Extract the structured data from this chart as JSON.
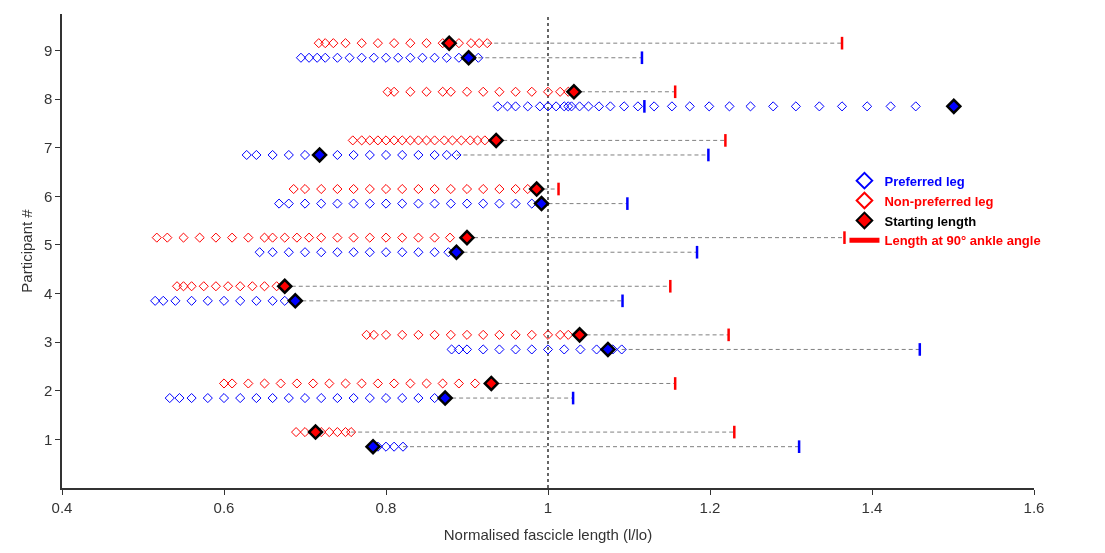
{
  "chart_data": {
    "type": "scatter",
    "xlabel": "Normalised fascicle length (l/lo)",
    "ylabel": "Participant #",
    "xlim": [
      0.4,
      1.6
    ],
    "xticks": [
      0.4,
      0.6,
      0.8,
      1,
      1.2,
      1.4,
      1.6
    ],
    "ylim": [
      0,
      9.75
    ],
    "yticks": [
      1,
      2,
      3,
      4,
      5,
      6,
      7,
      8,
      9
    ],
    "grid": false,
    "legend": "right",
    "ref_lines": [
      {
        "axis": "x",
        "value": 1,
        "color": "#000000",
        "line_style": "dotted"
      }
    ],
    "series": [
      {
        "type": "line",
        "color": "#808080",
        "line_style": "dashed",
        "marker": "none",
        "x": [
          0.925,
          1.363,
          null,
          1.032,
          1.157,
          null,
          0.936,
          1.219,
          null,
          0.986,
          1.013,
          null,
          0.9,
          1.366,
          null,
          0.675,
          1.151,
          null,
          1.039,
          1.223,
          null,
          0.93,
          1.157,
          null,
          0.757,
          1.23,
          null,
          0.914,
          1.116,
          null,
          0.887,
          1.198,
          null,
          0.992,
          1.098,
          null,
          0.887,
          1.184,
          null,
          0.688,
          1.092,
          null,
          1.091,
          1.459,
          null,
          0.873,
          1.031,
          null,
          0.821,
          1.31
        ],
        "values": [
          9.15,
          9.15,
          null,
          8.15,
          8.15,
          null,
          7.15,
          7.15,
          null,
          6.15,
          6.15,
          null,
          5.15,
          5.15,
          null,
          4.15,
          4.15,
          null,
          3.15,
          3.15,
          null,
          2.15,
          2.15,
          null,
          1.15,
          1.15,
          null,
          8.85,
          8.85,
          null,
          6.85,
          6.85,
          null,
          5.85,
          5.85,
          null,
          4.85,
          4.85,
          null,
          3.85,
          3.85,
          null,
          2.85,
          2.85,
          null,
          1.85,
          1.85,
          null,
          0.85,
          0.85
        ]
      },
      {
        "name": "Preferred leg",
        "color": "#0000ff",
        "marker": "diamond",
        "x": [
          0.695,
          0.705,
          0.715,
          0.725,
          0.74,
          0.755,
          0.77,
          0.785,
          0.8,
          0.815,
          0.83,
          0.845,
          0.86,
          0.875,
          0.89,
          0.914,
          0.938,
          0.95,
          0.96,
          0.975,
          0.99,
          1.0,
          1.01,
          1.02,
          1.025,
          1.029,
          1.039,
          1.05,
          1.063,
          1.077,
          1.094,
          1.111,
          1.131,
          1.153,
          1.175,
          1.199,
          1.224,
          1.25,
          1.278,
          1.306,
          1.335,
          1.363,
          1.394,
          1.423,
          1.454,
          0.628,
          0.64,
          0.66,
          0.68,
          0.7,
          0.74,
          0.76,
          0.78,
          0.8,
          0.82,
          0.84,
          0.86,
          0.875,
          0.887,
          0.668,
          0.68,
          0.7,
          0.72,
          0.74,
          0.76,
          0.78,
          0.8,
          0.82,
          0.84,
          0.86,
          0.88,
          0.9,
          0.92,
          0.94,
          0.96,
          0.98,
          0.644,
          0.66,
          0.68,
          0.7,
          0.72,
          0.74,
          0.76,
          0.78,
          0.8,
          0.82,
          0.84,
          0.86,
          0.877,
          0.515,
          0.525,
          0.54,
          0.56,
          0.58,
          0.6,
          0.62,
          0.64,
          0.66,
          0.675,
          0.881,
          0.89,
          0.9,
          0.92,
          0.94,
          0.96,
          0.98,
          1.0,
          1.02,
          1.04,
          1.06,
          1.08,
          1.091,
          0.533,
          0.545,
          0.56,
          0.58,
          0.6,
          0.62,
          0.64,
          0.66,
          0.68,
          0.7,
          0.72,
          0.74,
          0.76,
          0.78,
          0.8,
          0.82,
          0.84,
          0.86,
          0.79,
          0.8,
          0.81,
          0.821
        ],
        "values": [
          8.85,
          8.85,
          8.85,
          8.85,
          8.85,
          8.85,
          8.85,
          8.85,
          8.85,
          8.85,
          8.85,
          8.85,
          8.85,
          8.85,
          8.85,
          8.85,
          7.85,
          7.85,
          7.85,
          7.85,
          7.85,
          7.85,
          7.85,
          7.85,
          7.85,
          7.85,
          7.85,
          7.85,
          7.85,
          7.85,
          7.85,
          7.85,
          7.85,
          7.85,
          7.85,
          7.85,
          7.85,
          7.85,
          7.85,
          7.85,
          7.85,
          7.85,
          7.85,
          7.85,
          7.85,
          6.85,
          6.85,
          6.85,
          6.85,
          6.85,
          6.85,
          6.85,
          6.85,
          6.85,
          6.85,
          6.85,
          6.85,
          6.85,
          6.85,
          5.85,
          5.85,
          5.85,
          5.85,
          5.85,
          5.85,
          5.85,
          5.85,
          5.85,
          5.85,
          5.85,
          5.85,
          5.85,
          5.85,
          5.85,
          5.85,
          5.85,
          4.85,
          4.85,
          4.85,
          4.85,
          4.85,
          4.85,
          4.85,
          4.85,
          4.85,
          4.85,
          4.85,
          4.85,
          4.85,
          3.85,
          3.85,
          3.85,
          3.85,
          3.85,
          3.85,
          3.85,
          3.85,
          3.85,
          3.85,
          2.85,
          2.85,
          2.85,
          2.85,
          2.85,
          2.85,
          2.85,
          2.85,
          2.85,
          2.85,
          2.85,
          2.85,
          2.85,
          1.85,
          1.85,
          1.85,
          1.85,
          1.85,
          1.85,
          1.85,
          1.85,
          1.85,
          1.85,
          1.85,
          1.85,
          1.85,
          1.85,
          1.85,
          1.85,
          1.85,
          1.85,
          0.85,
          0.85,
          0.85,
          0.85
        ]
      },
      {
        "name": "Non-preferred leg",
        "color": "#ff0000",
        "marker": "diamond",
        "x": [
          0.717,
          0.725,
          0.735,
          0.75,
          0.77,
          0.79,
          0.81,
          0.83,
          0.85,
          0.87,
          0.89,
          0.905,
          0.915,
          0.925,
          0.802,
          0.81,
          0.83,
          0.85,
          0.87,
          0.88,
          0.9,
          0.92,
          0.94,
          0.96,
          0.98,
          1.0,
          1.015,
          1.025,
          0.759,
          0.77,
          0.78,
          0.79,
          0.8,
          0.81,
          0.82,
          0.83,
          0.84,
          0.85,
          0.86,
          0.872,
          0.882,
          0.893,
          0.904,
          0.913,
          0.922,
          0.686,
          0.7,
          0.72,
          0.74,
          0.76,
          0.78,
          0.8,
          0.82,
          0.84,
          0.86,
          0.88,
          0.9,
          0.92,
          0.94,
          0.96,
          0.975,
          0.517,
          0.53,
          0.55,
          0.57,
          0.59,
          0.61,
          0.63,
          0.65,
          0.66,
          0.675,
          0.69,
          0.705,
          0.72,
          0.74,
          0.76,
          0.78,
          0.8,
          0.82,
          0.84,
          0.86,
          0.879,
          0.542,
          0.55,
          0.56,
          0.575,
          0.59,
          0.605,
          0.62,
          0.635,
          0.65,
          0.665,
          0.776,
          0.785,
          0.8,
          0.82,
          0.84,
          0.86,
          0.88,
          0.9,
          0.92,
          0.94,
          0.96,
          0.98,
          1.0,
          1.015,
          1.025,
          0.6,
          0.61,
          0.63,
          0.65,
          0.67,
          0.69,
          0.71,
          0.73,
          0.75,
          0.77,
          0.79,
          0.81,
          0.83,
          0.85,
          0.87,
          0.89,
          0.91,
          0.689,
          0.7,
          0.72,
          0.73,
          0.74,
          0.75,
          0.757
        ],
        "values": [
          9.15,
          9.15,
          9.15,
          9.15,
          9.15,
          9.15,
          9.15,
          9.15,
          9.15,
          9.15,
          9.15,
          9.15,
          9.15,
          9.15,
          8.15,
          8.15,
          8.15,
          8.15,
          8.15,
          8.15,
          8.15,
          8.15,
          8.15,
          8.15,
          8.15,
          8.15,
          8.15,
          8.15,
          7.15,
          7.15,
          7.15,
          7.15,
          7.15,
          7.15,
          7.15,
          7.15,
          7.15,
          7.15,
          7.15,
          7.15,
          7.15,
          7.15,
          7.15,
          7.15,
          7.15,
          6.15,
          6.15,
          6.15,
          6.15,
          6.15,
          6.15,
          6.15,
          6.15,
          6.15,
          6.15,
          6.15,
          6.15,
          6.15,
          6.15,
          6.15,
          6.15,
          5.15,
          5.15,
          5.15,
          5.15,
          5.15,
          5.15,
          5.15,
          5.15,
          5.15,
          5.15,
          5.15,
          5.15,
          5.15,
          5.15,
          5.15,
          5.15,
          5.15,
          5.15,
          5.15,
          5.15,
          5.15,
          4.15,
          4.15,
          4.15,
          4.15,
          4.15,
          4.15,
          4.15,
          4.15,
          4.15,
          4.15,
          3.15,
          3.15,
          3.15,
          3.15,
          3.15,
          3.15,
          3.15,
          3.15,
          3.15,
          3.15,
          3.15,
          3.15,
          3.15,
          3.15,
          3.15,
          2.15,
          2.15,
          2.15,
          2.15,
          2.15,
          2.15,
          2.15,
          2.15,
          2.15,
          2.15,
          2.15,
          2.15,
          2.15,
          2.15,
          2.15,
          2.15,
          2.15,
          1.15,
          1.15,
          1.15,
          1.15,
          1.15,
          1.15,
          1.15
        ]
      },
      {
        "name": "Starting length",
        "color": "#000000",
        "marker": "diamond",
        "x": [
          0.878,
          1.032,
          0.936,
          0.986,
          0.9,
          0.675,
          1.039,
          0.93,
          0.713,
          0.902,
          1.501,
          0.718,
          0.992,
          0.887,
          0.688,
          1.074,
          0.873,
          0.784
        ],
        "values": [
          9.15,
          8.15,
          7.15,
          6.15,
          5.15,
          4.15,
          3.15,
          2.15,
          1.15,
          8.85,
          7.85,
          6.85,
          5.85,
          4.85,
          3.85,
          2.85,
          1.85,
          0.85
        ],
        "colors": [
          "#ff0000",
          "#ff0000",
          "#ff0000",
          "#ff0000",
          "#ff0000",
          "#ff0000",
          "#ff0000",
          "#ff0000",
          "#ff0000",
          "#0000ff",
          "#0000ff",
          "#0000ff",
          "#0000ff",
          "#0000ff",
          "#0000ff",
          "#0000ff",
          "#0000ff",
          "#0000ff"
        ]
      },
      {
        "type": "line",
        "name": "Length at 90° ankle angle",
        "color": "#ff0000",
        "line_style": "solid",
        "marker": "none",
        "x": [
          1.363,
          1.363
        ],
        "values": [
          9.02,
          9.28
        ]
      },
      {
        "type": "line",
        "color": "#ff0000",
        "line_style": "solid",
        "marker": "none",
        "x": [
          1.157,
          1.157
        ],
        "values": [
          8.02,
          8.28
        ]
      },
      {
        "type": "line",
        "color": "#ff0000",
        "line_style": "solid",
        "marker": "none",
        "x": [
          1.219,
          1.219
        ],
        "values": [
          7.02,
          7.28
        ]
      },
      {
        "type": "line",
        "color": "#ff0000",
        "line_style": "solid",
        "marker": "none",
        "x": [
          1.013,
          1.013
        ],
        "values": [
          6.02,
          6.28
        ]
      },
      {
        "type": "line",
        "color": "#ff0000",
        "line_style": "solid",
        "marker": "none",
        "x": [
          1.366,
          1.366
        ],
        "values": [
          5.02,
          5.28
        ]
      },
      {
        "type": "line",
        "color": "#ff0000",
        "line_style": "solid",
        "marker": "none",
        "x": [
          1.151,
          1.151
        ],
        "values": [
          4.02,
          4.28
        ]
      },
      {
        "type": "line",
        "color": "#ff0000",
        "line_style": "solid",
        "marker": "none",
        "x": [
          1.223,
          1.223
        ],
        "values": [
          3.02,
          3.28
        ]
      },
      {
        "type": "line",
        "color": "#ff0000",
        "line_style": "solid",
        "marker": "none",
        "x": [
          1.157,
          1.157
        ],
        "values": [
          2.02,
          2.28
        ]
      },
      {
        "type": "line",
        "color": "#ff0000",
        "line_style": "solid",
        "marker": "none",
        "x": [
          1.23,
          1.23
        ],
        "values": [
          1.02,
          1.28
        ]
      },
      {
        "type": "line",
        "color": "#0000ff",
        "line_style": "solid",
        "marker": "none",
        "x": [
          1.116,
          1.116
        ],
        "values": [
          8.72,
          8.98
        ]
      },
      {
        "type": "line",
        "color": "#0000ff",
        "line_style": "solid",
        "marker": "none",
        "x": [
          1.119,
          1.119
        ],
        "values": [
          7.72,
          7.98
        ]
      },
      {
        "type": "line",
        "color": "#0000ff",
        "line_style": "solid",
        "marker": "none",
        "x": [
          1.198,
          1.198
        ],
        "values": [
          6.72,
          6.98
        ]
      },
      {
        "type": "line",
        "color": "#0000ff",
        "line_style": "solid",
        "marker": "none",
        "x": [
          1.098,
          1.098
        ],
        "values": [
          5.72,
          5.98
        ]
      },
      {
        "type": "line",
        "color": "#0000ff",
        "line_style": "solid",
        "marker": "none",
        "x": [
          1.184,
          1.184
        ],
        "values": [
          4.72,
          4.98
        ]
      },
      {
        "type": "line",
        "color": "#0000ff",
        "line_style": "solid",
        "marker": "none",
        "x": [
          1.092,
          1.092
        ],
        "values": [
          3.72,
          3.98
        ]
      },
      {
        "type": "line",
        "color": "#0000ff",
        "line_style": "solid",
        "marker": "none",
        "x": [
          1.459,
          1.459
        ],
        "values": [
          2.72,
          2.98
        ]
      },
      {
        "type": "line",
        "color": "#0000ff",
        "line_style": "solid",
        "marker": "none",
        "x": [
          1.031,
          1.031
        ],
        "values": [
          1.72,
          1.98
        ]
      },
      {
        "type": "line",
        "color": "#0000ff",
        "line_style": "solid",
        "marker": "none",
        "x": [
          1.31,
          1.31
        ],
        "values": [
          0.72,
          0.98
        ]
      }
    ]
  }
}
